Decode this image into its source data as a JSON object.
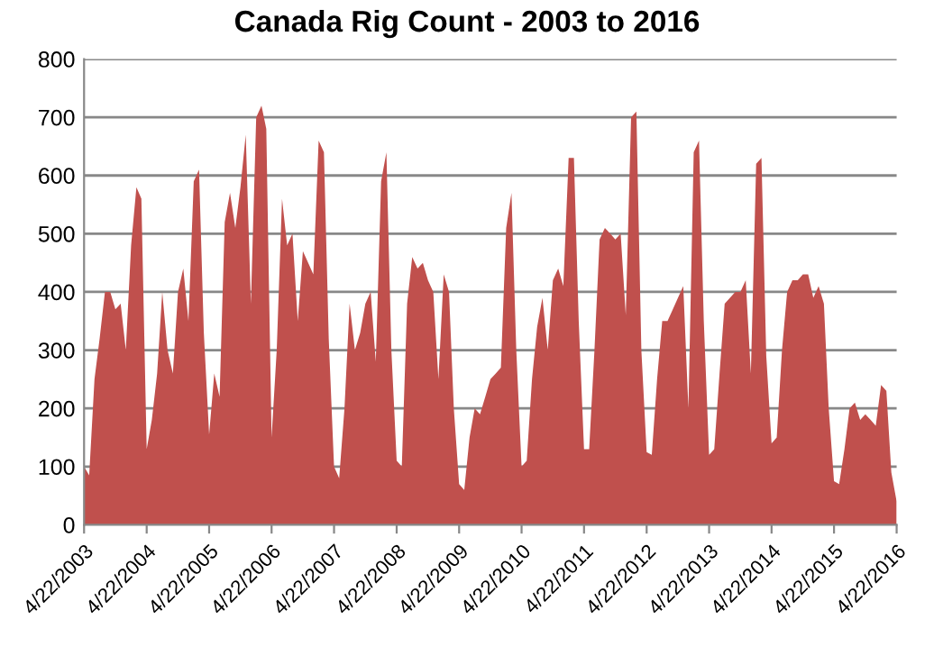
{
  "chart_data": {
    "type": "area",
    "title": "Canada Rig Count - 2003 to 2016",
    "x": [
      "2003-04-22",
      "2003-05-22",
      "2003-06-22",
      "2003-07-22",
      "2003-08-22",
      "2003-09-22",
      "2003-10-22",
      "2003-11-22",
      "2003-12-22",
      "2004-01-22",
      "2004-02-22",
      "2004-03-22",
      "2004-04-22",
      "2004-05-22",
      "2004-06-22",
      "2004-07-22",
      "2004-08-22",
      "2004-09-22",
      "2004-10-22",
      "2004-11-22",
      "2004-12-22",
      "2005-01-22",
      "2005-02-22",
      "2005-03-22",
      "2005-04-22",
      "2005-05-22",
      "2005-06-22",
      "2005-07-22",
      "2005-08-22",
      "2005-09-22",
      "2005-10-22",
      "2005-11-22",
      "2005-12-22",
      "2006-01-22",
      "2006-02-22",
      "2006-03-22",
      "2006-04-22",
      "2006-05-22",
      "2006-06-22",
      "2006-07-22",
      "2006-08-22",
      "2006-09-22",
      "2006-10-22",
      "2006-11-22",
      "2006-12-22",
      "2007-01-22",
      "2007-02-22",
      "2007-03-22",
      "2007-04-22",
      "2007-05-22",
      "2007-06-22",
      "2007-07-22",
      "2007-08-22",
      "2007-09-22",
      "2007-10-22",
      "2007-11-22",
      "2007-12-22",
      "2008-01-22",
      "2008-02-22",
      "2008-03-22",
      "2008-04-22",
      "2008-05-22",
      "2008-06-22",
      "2008-07-22",
      "2008-08-22",
      "2008-09-22",
      "2008-10-22",
      "2008-11-22",
      "2008-12-22",
      "2009-01-22",
      "2009-02-22",
      "2009-03-22",
      "2009-04-22",
      "2009-05-22",
      "2009-06-22",
      "2009-07-22",
      "2009-08-22",
      "2009-09-22",
      "2009-10-22",
      "2009-11-22",
      "2009-12-22",
      "2010-01-22",
      "2010-02-22",
      "2010-03-22",
      "2010-04-22",
      "2010-05-22",
      "2010-06-22",
      "2010-07-22",
      "2010-08-22",
      "2010-09-22",
      "2010-10-22",
      "2010-11-22",
      "2010-12-22",
      "2011-01-22",
      "2011-02-22",
      "2011-03-22",
      "2011-04-22",
      "2011-05-22",
      "2011-06-22",
      "2011-07-22",
      "2011-08-22",
      "2011-09-22",
      "2011-10-22",
      "2011-11-22",
      "2011-12-22",
      "2012-01-22",
      "2012-02-22",
      "2012-03-22",
      "2012-04-22",
      "2012-05-22",
      "2012-06-22",
      "2012-07-22",
      "2012-08-22",
      "2012-09-22",
      "2012-10-22",
      "2012-11-22",
      "2012-12-22",
      "2013-01-22",
      "2013-02-22",
      "2013-03-22",
      "2013-04-22",
      "2013-05-22",
      "2013-06-22",
      "2013-07-22",
      "2013-08-22",
      "2013-09-22",
      "2013-10-22",
      "2013-11-22",
      "2013-12-22",
      "2014-01-22",
      "2014-02-22",
      "2014-03-22",
      "2014-04-22",
      "2014-05-22",
      "2014-06-22",
      "2014-07-22",
      "2014-08-22",
      "2014-09-22",
      "2014-10-22",
      "2014-11-22",
      "2014-12-22",
      "2015-01-22",
      "2015-02-22",
      "2015-03-22",
      "2015-04-22",
      "2015-05-22",
      "2015-06-22",
      "2015-07-22",
      "2015-08-22",
      "2015-09-22",
      "2015-10-22",
      "2015-11-22",
      "2015-12-22",
      "2016-01-22",
      "2016-02-22",
      "2016-03-22",
      "2016-04-22"
    ],
    "series": [
      {
        "color": "#c0504d",
        "values": [
          100,
          85,
          250,
          320,
          400,
          400,
          370,
          380,
          300,
          480,
          580,
          560,
          130,
          180,
          260,
          400,
          300,
          260,
          400,
          440,
          350,
          590,
          610,
          330,
          155,
          260,
          220,
          520,
          570,
          510,
          580,
          670,
          380,
          700,
          720,
          680,
          150,
          300,
          560,
          480,
          500,
          350,
          470,
          450,
          430,
          660,
          640,
          320,
          100,
          80,
          200,
          380,
          300,
          330,
          380,
          400,
          280,
          590,
          640,
          300,
          110,
          100,
          380,
          460,
          440,
          450,
          420,
          400,
          250,
          430,
          400,
          200,
          70,
          60,
          150,
          200,
          190,
          220,
          250,
          260,
          270,
          510,
          570,
          300,
          100,
          110,
          250,
          340,
          390,
          300,
          420,
          440,
          410,
          630,
          630,
          350,
          130,
          130,
          300,
          490,
          510,
          500,
          490,
          500,
          360,
          700,
          710,
          300,
          125,
          120,
          250,
          350,
          350,
          370,
          390,
          410,
          200,
          640,
          660,
          350,
          120,
          130,
          260,
          380,
          390,
          400,
          400,
          420,
          260,
          620,
          630,
          290,
          140,
          150,
          300,
          400,
          420,
          420,
          430,
          430,
          390,
          410,
          380,
          200,
          75,
          70,
          130,
          200,
          210,
          180,
          190,
          180,
          170,
          240,
          230,
          90,
          40
        ]
      }
    ],
    "xlim": [
      "2003-04-22",
      "2016-04-22"
    ],
    "xticks": [
      {
        "value": "2003-04-22",
        "label": "4/22/2003"
      },
      {
        "value": "2004-04-22",
        "label": "4/22/2004"
      },
      {
        "value": "2005-04-22",
        "label": "4/22/2005"
      },
      {
        "value": "2006-04-22",
        "label": "4/22/2006"
      },
      {
        "value": "2007-04-22",
        "label": "4/22/2007"
      },
      {
        "value": "2008-04-22",
        "label": "4/22/2008"
      },
      {
        "value": "2009-04-22",
        "label": "4/22/2009"
      },
      {
        "value": "2010-04-22",
        "label": "4/22/2010"
      },
      {
        "value": "2011-04-22",
        "label": "4/22/2011"
      },
      {
        "value": "2012-04-22",
        "label": "4/22/2012"
      },
      {
        "value": "2013-04-22",
        "label": "4/22/2013"
      },
      {
        "value": "2014-04-22",
        "label": "4/22/2014"
      },
      {
        "value": "2015-04-22",
        "label": "4/22/2015"
      },
      {
        "value": "2016-04-22",
        "label": "4/22/2016"
      }
    ],
    "ylim": [
      0,
      800
    ],
    "yticks": [
      0,
      100,
      200,
      300,
      400,
      500,
      600,
      700,
      800
    ],
    "grid": "y",
    "legend": false
  }
}
